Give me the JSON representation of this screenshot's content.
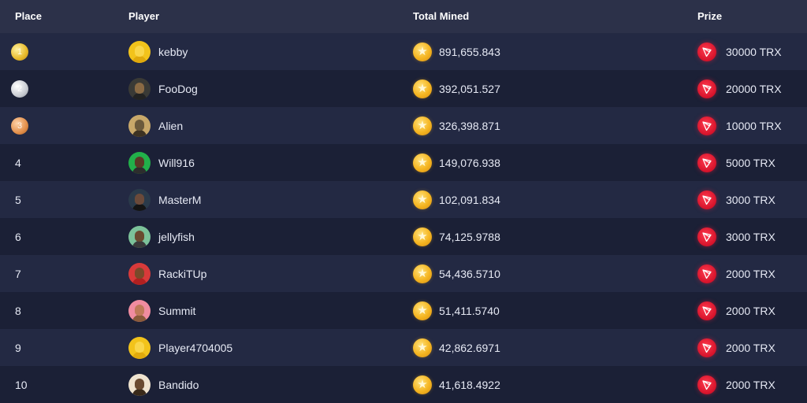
{
  "header": {
    "place": "Place",
    "player": "Player",
    "total_mined": "Total Mined",
    "prize": "Prize"
  },
  "rows": [
    {
      "place": "1",
      "medal": "gold",
      "player": "kebby",
      "mined": "891,655.843",
      "prize": "30000 TRX",
      "avatar": {
        "bg": "#f2c31b",
        "face": "#f9d64a",
        "body": "#e0a90c"
      }
    },
    {
      "place": "2",
      "medal": "silver",
      "player": "FooDog",
      "mined": "392,051.527",
      "prize": "20000 TRX",
      "avatar": {
        "bg": "#3a3a36",
        "face": "#8a6a44",
        "body": "#222"
      }
    },
    {
      "place": "3",
      "medal": "bronze",
      "player": "Alien",
      "mined": "326,398.871",
      "prize": "10000 TRX",
      "avatar": {
        "bg": "#c8a86a",
        "face": "#6b5a3c",
        "body": "#3d3222"
      }
    },
    {
      "place": "4",
      "medal": "",
      "player": "Will916",
      "mined": "149,076.938",
      "prize": "5000 TRX",
      "avatar": {
        "bg": "#22b04a",
        "face": "#5a3a26",
        "body": "#2d2d2d"
      }
    },
    {
      "place": "5",
      "medal": "",
      "player": "MasterM",
      "mined": "102,091.834",
      "prize": "3000 TRX",
      "avatar": {
        "bg": "#2a3a4a",
        "face": "#6a4a3a",
        "body": "#141414"
      }
    },
    {
      "place": "6",
      "medal": "",
      "player": "jellyfish",
      "mined": "74,125.9788",
      "prize": "3000 TRX",
      "avatar": {
        "bg": "#7cc29a",
        "face": "#6a4a30",
        "body": "#3a3a3a"
      }
    },
    {
      "place": "7",
      "medal": "",
      "player": "RackiTUp",
      "mined": "54,436.5710",
      "prize": "2000 TRX",
      "avatar": {
        "bg": "#d83a3a",
        "face": "#7a4a2a",
        "body": "#b02020"
      }
    },
    {
      "place": "8",
      "medal": "",
      "player": "Summit",
      "mined": "51,411.5740",
      "prize": "2000 TRX",
      "avatar": {
        "bg": "#f08ca0",
        "face": "#c07a5a",
        "body": "#8a5a3a"
      }
    },
    {
      "place": "9",
      "medal": "",
      "player": "Player4704005",
      "mined": "42,862.6971",
      "prize": "2000 TRX",
      "avatar": {
        "bg": "#f2c31b",
        "face": "#f9d64a",
        "body": "#e0a90c"
      }
    },
    {
      "place": "10",
      "medal": "",
      "player": "Bandido",
      "mined": "41,618.4922",
      "prize": "2000 TRX",
      "avatar": {
        "bg": "#efe3cf",
        "face": "#6a4a30",
        "body": "#3a2a1a"
      }
    }
  ]
}
